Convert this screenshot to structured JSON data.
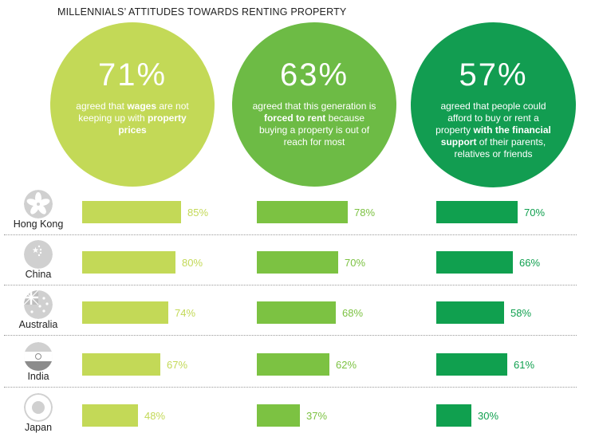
{
  "title": "MILLENNIALS’ ATTITUDES TOWARDS RENTING PROPERTY",
  "colors": {
    "series1": "#c3d957",
    "series2": "#7cc242",
    "series3": "#10a04f",
    "circle1": "#c3d957",
    "circle2": "#6dbb45",
    "circle3": "#129d51"
  },
  "circles": [
    {
      "pct": "71%",
      "parts": [
        {
          "t": "agreed that "
        },
        {
          "t": "wages",
          "b": true
        },
        {
          "t": " are not keeping up with "
        },
        {
          "t": "property prices",
          "b": true
        }
      ]
    },
    {
      "pct": "63%",
      "parts": [
        {
          "t": "agreed that this generation is "
        },
        {
          "t": "forced to rent",
          "b": true
        },
        {
          "t": " because buying a property is out of reach for most"
        }
      ]
    },
    {
      "pct": "57%",
      "parts": [
        {
          "t": "agreed that people could afford to buy or rent a property "
        },
        {
          "t": "with the financial support",
          "b": true
        },
        {
          "t": " of their parents, relatives or friends"
        }
      ]
    }
  ],
  "chart_data": {
    "type": "bar",
    "title": "MILLENNIALS’ ATTITUDES TOWARDS RENTING PROPERTY",
    "categories": [
      "Hong Kong",
      "China",
      "Australia",
      "India",
      "Japan"
    ],
    "series": [
      {
        "name": "wages are not keeping up with property prices",
        "values": [
          85,
          80,
          74,
          67,
          48
        ]
      },
      {
        "name": "forced to rent",
        "values": [
          78,
          70,
          68,
          62,
          37
        ]
      },
      {
        "name": "with the financial support of parents, relatives or friends",
        "values": [
          70,
          66,
          58,
          61,
          30
        ]
      }
    ],
    "value_suffix": "%"
  },
  "flag_icons": [
    "hong-kong-flag-icon",
    "china-flag-icon",
    "australia-flag-icon",
    "india-flag-icon",
    "japan-flag-icon"
  ]
}
